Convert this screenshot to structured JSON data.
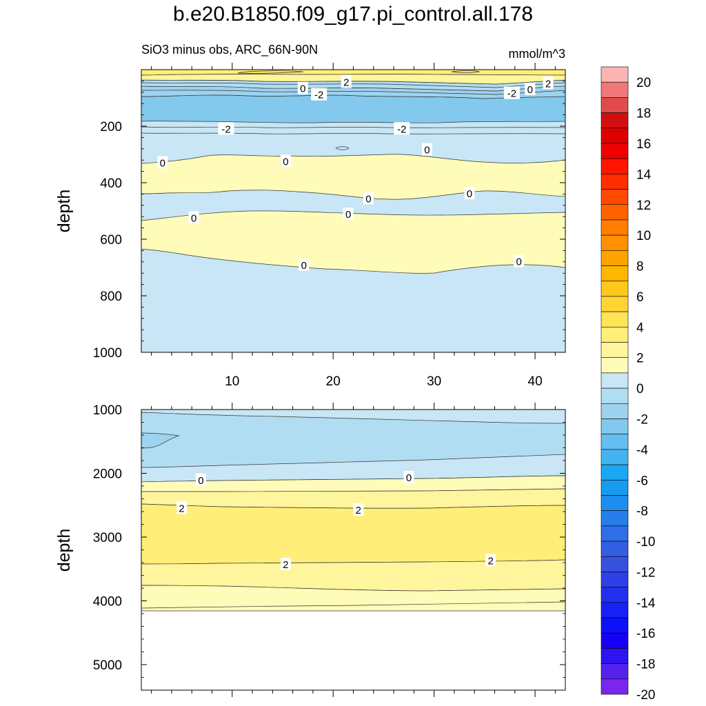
{
  "chart_data": {
    "type": "contour",
    "title": "b.e20.B1850.f09_g17.pi_control.all.178",
    "subtitle_left": "SiO3 minus obs, ARC_66N-90N",
    "subtitle_right": "mmol/m^3",
    "panels": [
      {
        "name": "upper",
        "ylabel": "depth",
        "ylim": [
          0,
          1000
        ],
        "y_ticks": [
          200,
          400,
          600,
          800,
          1000
        ],
        "xlim": [
          1,
          43
        ],
        "x_ticks": [
          10,
          20,
          30,
          40
        ],
        "contour_labels": [
          {
            "text": "2",
            "x": 21.3,
            "y": 43
          },
          {
            "text": "0",
            "x": 17.0,
            "y": 65
          },
          {
            "text": "-2",
            "x": 18.6,
            "y": 87
          },
          {
            "text": "-2",
            "x": 37.7,
            "y": 82
          },
          {
            "text": "0",
            "x": 39.5,
            "y": 68
          },
          {
            "text": "2",
            "x": 41.3,
            "y": 47
          },
          {
            "text": "-2",
            "x": 9.4,
            "y": 208
          },
          {
            "text": "-2",
            "x": 26.8,
            "y": 208
          },
          {
            "text": "0",
            "x": 29.3,
            "y": 282
          },
          {
            "text": "0",
            "x": 3.1,
            "y": 328
          },
          {
            "text": "0",
            "x": 15.3,
            "y": 323
          },
          {
            "text": "0",
            "x": 33.5,
            "y": 437
          },
          {
            "text": "0",
            "x": 23.5,
            "y": 455
          },
          {
            "text": "0",
            "x": 6.2,
            "y": 523
          },
          {
            "text": "0",
            "x": 21.5,
            "y": 510
          },
          {
            "text": "0",
            "x": 38.4,
            "y": 677
          },
          {
            "text": "0",
            "x": 17.1,
            "y": 690
          }
        ]
      },
      {
        "name": "lower",
        "ylabel": "depth",
        "ylim": [
          1000,
          5400
        ],
        "y_ticks": [
          1000,
          2000,
          3000,
          4000,
          5000
        ],
        "xlim": [
          1,
          43
        ],
        "contour_labels": [
          {
            "text": "0",
            "x": 6.9,
            "y": 2100
          },
          {
            "text": "0",
            "x": 27.5,
            "y": 2060
          },
          {
            "text": "2",
            "x": 5.0,
            "y": 2540
          },
          {
            "text": "2",
            "x": 22.5,
            "y": 2570
          },
          {
            "text": "2",
            "x": 15.3,
            "y": 3420
          },
          {
            "text": "2",
            "x": 35.6,
            "y": 3360
          }
        ]
      }
    ],
    "colorbar": {
      "labels": [
        "20",
        "18",
        "16",
        "14",
        "12",
        "10",
        "8",
        "6",
        "4",
        "2",
        "0",
        "-2",
        "-4",
        "-6",
        "-8",
        "-10",
        "-12",
        "-14",
        "-16",
        "-18",
        "-20"
      ],
      "colors": [
        "#fbb3b3",
        "#f07878",
        "#e24b4b",
        "#d01010",
        "#dd0000",
        "#ee0000",
        "#ff1500",
        "#ff2d00",
        "#ff4a00",
        "#ff6300",
        "#ff7d00",
        "#ff9000",
        "#ffa300",
        "#ffb600",
        "#ffc81a",
        "#ffd536",
        "#ffe455",
        "#ffee78",
        "#fff59c",
        "#fffbb8",
        "#c8e6f5",
        "#b1ddf3",
        "#9dd3ef",
        "#82c9ed",
        "#66bef0",
        "#44b3f1",
        "#1aa8f2",
        "#159cef",
        "#1e8ded",
        "#267ee9",
        "#2e6ee6",
        "#335ee2",
        "#3850df",
        "#2e40e8",
        "#2330ef",
        "#1821f5",
        "#0d10fa",
        "#1500f5",
        "#2f14f1",
        "#5522ee",
        "#7a26ee"
      ]
    }
  }
}
